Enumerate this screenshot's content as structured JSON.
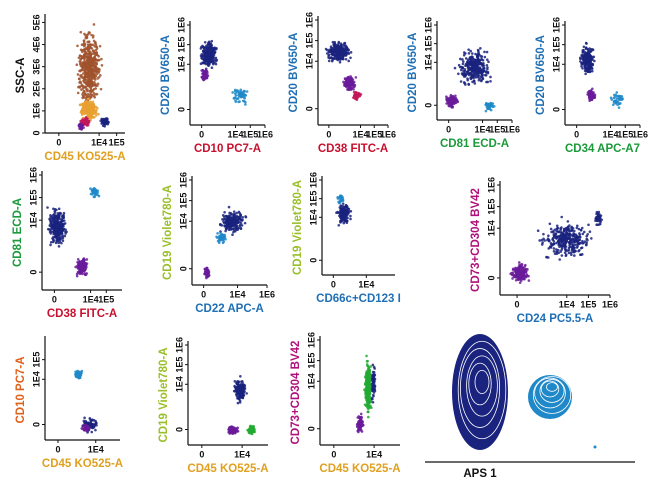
{
  "chart_data": [
    {
      "type": "scatter",
      "x_label": "CD45 KO525-A",
      "y_label": "SSC-A",
      "x_label_color": "#e0a020",
      "y_label_color": "#111111",
      "xscale": "biexponential",
      "yscale": "linear",
      "xlim": [
        -300,
        300000
      ],
      "ylim": [
        0,
        5200000
      ],
      "xticks": [
        0,
        {
          "value": 10000,
          "label": "1E4"
        },
        {
          "value": 100000,
          "label": "1E5"
        }
      ],
      "yticks": [
        0,
        {
          "value": 1000000,
          "label": "1E6"
        },
        {
          "value": 2000000,
          "label": "2E6"
        },
        {
          "value": 3000000,
          "label": "3E6"
        },
        {
          "value": 4000000,
          "label": "4E6"
        },
        {
          "value": 5000000,
          "label": "5E6"
        }
      ]
    },
    {
      "type": "scatter",
      "x_label": "CD10 PC7-A",
      "y_label": "CD20 BV650-A",
      "x_label_color": "#c8102e",
      "y_label_color": "#1f6fb5",
      "xscale": "biexponential",
      "yscale": "biexponential",
      "xlim": [
        -300,
        1000000
      ],
      "ylim": [
        -300,
        1000000
      ],
      "xticks": [
        0,
        {
          "value": 10000,
          "label": "1E4"
        },
        {
          "value": 100000,
          "label": "1E5"
        },
        {
          "value": 1000000,
          "label": "1E6"
        }
      ],
      "yticks": [
        0,
        {
          "value": 10000,
          "label": "1E4"
        },
        {
          "value": 100000,
          "label": "1E5"
        },
        {
          "value": 1000000,
          "label": "1E6"
        }
      ]
    },
    {
      "type": "scatter",
      "x_label": "CD38 FITC-A",
      "y_label": "CD20 BV650-A",
      "x_label_color": "#c8102e",
      "y_label_color": "#1f6fb5",
      "xscale": "biexponential",
      "yscale": "biexponential",
      "xlim": [
        -300,
        1000000
      ],
      "ylim": [
        -300,
        1000000
      ],
      "xticks": [
        0,
        {
          "value": 10000,
          "label": "1E4"
        },
        {
          "value": 100000,
          "label": "1E5"
        },
        {
          "value": 1000000,
          "label": "1E6"
        }
      ],
      "yticks": [
        0,
        {
          "value": 10000,
          "label": "1E4"
        },
        {
          "value": 100000,
          "label": "1E5"
        },
        {
          "value": 1000000,
          "label": "1E6"
        }
      ]
    },
    {
      "type": "scatter",
      "x_label": "CD81 ECD-A",
      "y_label": "CD20 BV650-A",
      "x_label_color": "#1a9a3a",
      "y_label_color": "#1f6fb5",
      "xscale": "biexponential",
      "yscale": "biexponential",
      "xlim": [
        -300,
        1000000
      ],
      "ylim": [
        -300,
        1000000
      ],
      "xticks": [
        0,
        {
          "value": 10000,
          "label": "1E4"
        },
        {
          "value": 100000,
          "label": "1E5"
        },
        {
          "value": 1000000,
          "label": "1E6"
        }
      ],
      "yticks": [
        0,
        {
          "value": 10000,
          "label": "1E4"
        },
        {
          "value": 100000,
          "label": "1E5"
        },
        {
          "value": 1000000,
          "label": "1E6"
        }
      ]
    },
    {
      "type": "scatter",
      "x_label": "CD34 APC-A7",
      "y_label": "CD20 BV650-A",
      "x_label_color": "#1a9a3a",
      "y_label_color": "#1f6fb5",
      "xscale": "biexponential",
      "yscale": "biexponential",
      "xlim": [
        -300,
        1000000
      ],
      "ylim": [
        -300,
        1000000
      ],
      "xticks": [
        0,
        {
          "value": 10000,
          "label": "1E4"
        },
        {
          "value": 100000,
          "label": "1E5"
        },
        {
          "value": 1000000,
          "label": "1E6"
        }
      ],
      "yticks": [
        0,
        {
          "value": 10000,
          "label": "1E4"
        },
        {
          "value": 100000,
          "label": "1E5"
        },
        {
          "value": 1000000,
          "label": "1E6"
        }
      ]
    },
    {
      "type": "scatter",
      "x_label": "CD38 FITC-A",
      "y_label": "CD81 ECD-A",
      "x_label_color": "#c8102e",
      "y_label_color": "#1a9a3a",
      "xscale": "biexponential",
      "yscale": "biexponential",
      "xlim": [
        -300,
        1000000
      ],
      "ylim": [
        -300,
        1000000
      ],
      "xticks": [
        0,
        {
          "value": 10000,
          "label": "1E4"
        },
        {
          "value": 100000,
          "label": "1E5"
        }
      ],
      "yticks": [
        0,
        {
          "value": 10000,
          "label": "1E4"
        },
        {
          "value": 100000,
          "label": "1E5"
        },
        {
          "value": 1000000,
          "label": "1E6"
        }
      ]
    },
    {
      "type": "scatter",
      "x_label": "CD22 APC-A",
      "y_label": "CD19 Violet780-A",
      "x_label_color": "#1f6fb5",
      "y_label_color": "#9bbf2a",
      "xscale": "biexponential",
      "yscale": "biexponential",
      "xlim": [
        -300,
        1000000
      ],
      "ylim": [
        -300,
        1000000
      ],
      "xticks": [
        0,
        {
          "value": 10000,
          "label": "1E4"
        },
        {
          "value": 1000000,
          "label": "1E6"
        }
      ],
      "yticks": [
        0,
        {
          "value": 10000,
          "label": "1E4"
        },
        {
          "value": 100000,
          "label": "1E5"
        },
        {
          "value": 1000000,
          "label": "1E6"
        }
      ]
    },
    {
      "type": "scatter",
      "x_label": "CD66c+CD123 I",
      "y_label": "CD19 Violet780-A",
      "x_label_color": "#1f6fb5",
      "y_label_color": "#9bbf2a",
      "xscale": "biexponential",
      "yscale": "biexponential",
      "xlim": [
        -300,
        1000000
      ],
      "ylim": [
        -300,
        1000000
      ],
      "xticks": [
        0,
        {
          "value": 10000,
          "label": "1E4"
        }
      ],
      "yticks": [
        0,
        {
          "value": 10000,
          "label": "1E4"
        },
        {
          "value": 100000,
          "label": "1E5"
        },
        {
          "value": 1000000,
          "label": "1E6"
        }
      ]
    },
    {
      "type": "scatter",
      "x_label": "CD24 PC5.5-A",
      "y_label": "CD73+CD304 BV42",
      "x_label_color": "#1f6fb5",
      "y_label_color": "#b0107a",
      "xscale": "biexponential",
      "yscale": "biexponential",
      "xlim": [
        -300,
        1000000
      ],
      "ylim": [
        -300,
        1000000
      ],
      "xticks": [
        0,
        {
          "value": 10000,
          "label": "1E4"
        },
        {
          "value": 100000,
          "label": "1E5"
        },
        {
          "value": 1000000,
          "label": "1E6"
        }
      ],
      "yticks": [
        0,
        {
          "value": 10000,
          "label": "1E4"
        },
        {
          "value": 100000,
          "label": "1E5"
        },
        {
          "value": 1000000,
          "label": "1E6"
        }
      ]
    },
    {
      "type": "scatter",
      "x_label": "CD45 KO525-A",
      "y_label": "CD10 PC7-A",
      "x_label_color": "#e0a020",
      "y_label_color": "#e0601a",
      "xscale": "biexponential",
      "yscale": "biexponential",
      "xlim": [
        -300,
        300000
      ],
      "ylim": [
        -300,
        1000000
      ],
      "xticks": [
        0,
        {
          "value": 10000,
          "label": "1E4"
        }
      ],
      "yticks": [
        0,
        {
          "value": 10000,
          "label": "1E4"
        },
        {
          "value": 100000,
          "label": "1E5"
        }
      ]
    },
    {
      "type": "scatter",
      "x_label": "CD45 KO525-A",
      "y_label": "CD19 Violet780-A",
      "x_label_color": "#e0a020",
      "y_label_color": "#9bbf2a",
      "xscale": "biexponential",
      "yscale": "biexponential",
      "xlim": [
        -300,
        300000
      ],
      "ylim": [
        -300,
        1000000
      ],
      "xticks": [
        0,
        {
          "value": 10000,
          "label": "1E4"
        }
      ],
      "yticks": [
        0,
        {
          "value": 10000,
          "label": "1E4"
        },
        {
          "value": 100000,
          "label": "1E5"
        },
        {
          "value": 1000000,
          "label": "1E6"
        }
      ]
    },
    {
      "type": "scatter",
      "x_label": "CD45 KO525-A",
      "y_label": "CD73+CD304 BV42",
      "x_label_color": "#e0a020",
      "y_label_color": "#b0107a",
      "xscale": "biexponential",
      "yscale": "biexponential",
      "xlim": [
        -300,
        300000
      ],
      "ylim": [
        -300,
        1000000
      ],
      "xticks": [
        0,
        {
          "value": 10000,
          "label": "1E4"
        }
      ],
      "yticks": [
        0,
        {
          "value": 10000,
          "label": "1E4"
        },
        {
          "value": 100000,
          "label": "1E5"
        },
        {
          "value": 1000000,
          "label": "1E6"
        }
      ]
    },
    {
      "type": "contour",
      "x_label": "APS 1",
      "x_label_color": "#111111"
    }
  ]
}
